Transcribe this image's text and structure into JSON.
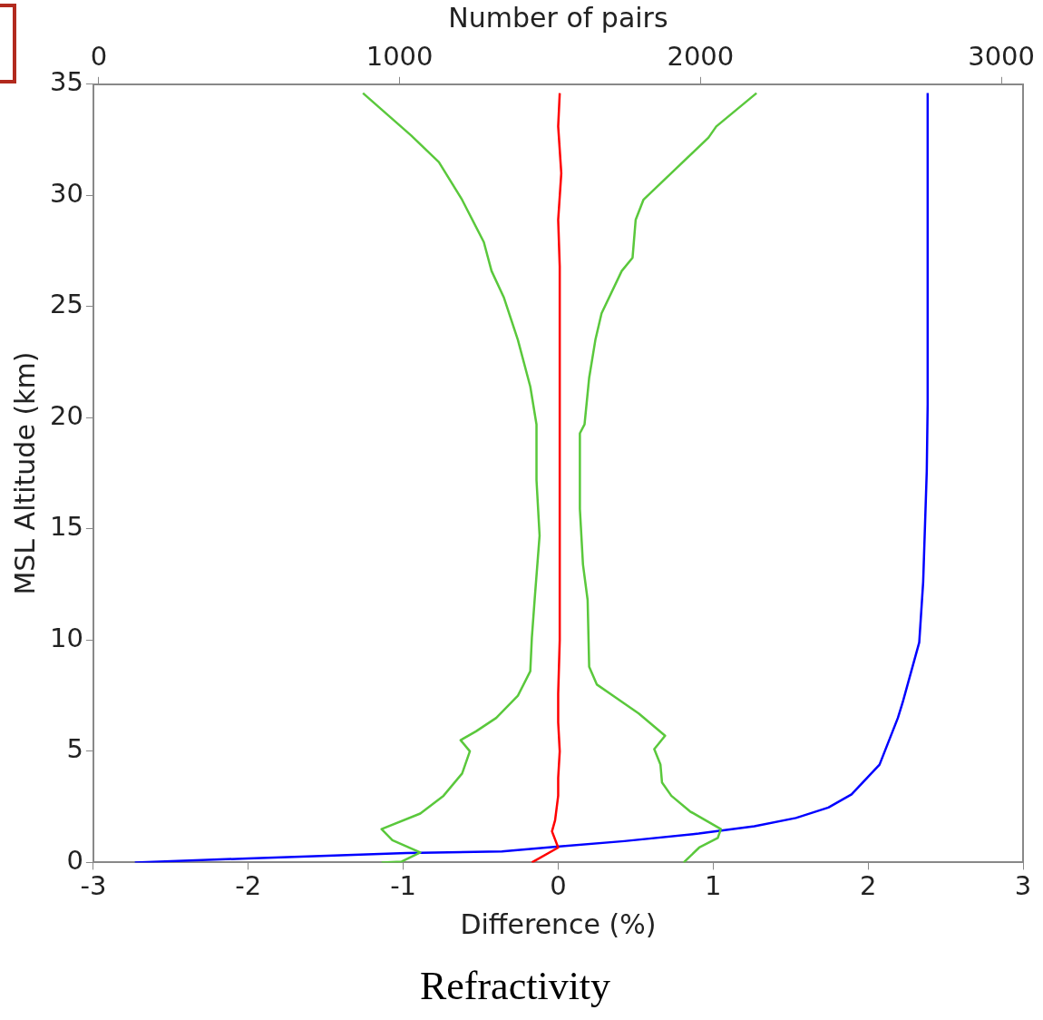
{
  "chart_data": {
    "type": "line",
    "title": "Refractivity",
    "xlabel": "Difference (%)",
    "ylabel": "MSL Altitude (km)",
    "x2label": "Number of pairs",
    "xlim": [
      -3,
      3
    ],
    "xticks": [
      -3,
      -2,
      -1,
      0,
      1,
      2,
      3
    ],
    "x2lim": [
      -18,
      3072
    ],
    "x2ticks": [
      0,
      1000,
      2000,
      3000
    ],
    "ylim": [
      0,
      35
    ],
    "yticks": [
      0,
      5,
      10,
      15,
      20,
      25,
      30,
      35
    ],
    "grid": false,
    "legend": false,
    "marker": "none",
    "series": [
      {
        "color": "#5ac83c",
        "x": [
          -1.14,
          -1.01,
          -0.89,
          -1.07,
          -1.14,
          -0.89,
          -0.74,
          -0.62,
          -0.57,
          -0.63,
          -0.53,
          -0.4,
          -0.26,
          -0.18,
          -0.17,
          -0.15,
          -0.12,
          -0.14,
          -0.14,
          -0.18,
          -0.26,
          -0.35,
          -0.43,
          -0.48,
          -0.62,
          -0.77,
          -0.95,
          -1.26
        ],
        "values": [
          0,
          0.04,
          0.45,
          1,
          1.5,
          2.2,
          3,
          4,
          5,
          5.5,
          5.9,
          6.5,
          7.5,
          8.6,
          10.1,
          12,
          14.7,
          17.2,
          19.7,
          21.4,
          23.5,
          25.4,
          26.6,
          27.9,
          29.8,
          31.5,
          32.7,
          34.6
        ]
      },
      {
        "color": "#5ac83c",
        "x": [
          0.81,
          0.91,
          1.03,
          1.05,
          0.85,
          0.73,
          0.67,
          0.66,
          0.62,
          0.69,
          0.52,
          0.25,
          0.2,
          0.19,
          0.16,
          0.14,
          0.14,
          0.17,
          0.2,
          0.24,
          0.28,
          0.41,
          0.48,
          0.5,
          0.55,
          0.76,
          0.97,
          1.02,
          1.28
        ],
        "values": [
          0,
          0.67,
          1.1,
          1.5,
          2.3,
          3,
          3.6,
          4.4,
          5.1,
          5.7,
          6.7,
          8,
          8.8,
          11.8,
          13.4,
          15.9,
          19.3,
          19.7,
          21.8,
          23.5,
          24.7,
          26.6,
          27.2,
          28.9,
          29.8,
          31.2,
          32.6,
          33.1,
          34.6
        ]
      },
      {
        "color": "#ff0000",
        "x": [
          -0.17,
          0,
          -0.04,
          -0.02,
          0,
          0,
          0.01,
          0,
          0,
          0.01,
          0.01,
          0.01,
          0.01,
          0.01,
          0,
          0.02,
          0,
          0.01
        ],
        "values": [
          0,
          0.67,
          1.4,
          1.9,
          3,
          3.8,
          5,
          6.3,
          7.6,
          10,
          14.3,
          18.5,
          22.6,
          26.8,
          28.9,
          31,
          33.1,
          34.6
        ]
      },
      {
        "color": "#0000ff",
        "axis": "x2",
        "x": [
          120,
          496,
          1023,
          1340,
          1522,
          1747,
          1994,
          2179,
          2317,
          2425,
          2502,
          2595,
          2656,
          2672,
          2727,
          2740,
          2752,
          2755,
          2755
        ],
        "values": [
          0,
          0.18,
          0.42,
          0.5,
          0.71,
          0.96,
          1.3,
          1.63,
          2,
          2.47,
          3.06,
          4.4,
          6.5,
          7.2,
          9.9,
          12.6,
          17.6,
          20.6,
          34.6
        ]
      }
    ]
  }
}
